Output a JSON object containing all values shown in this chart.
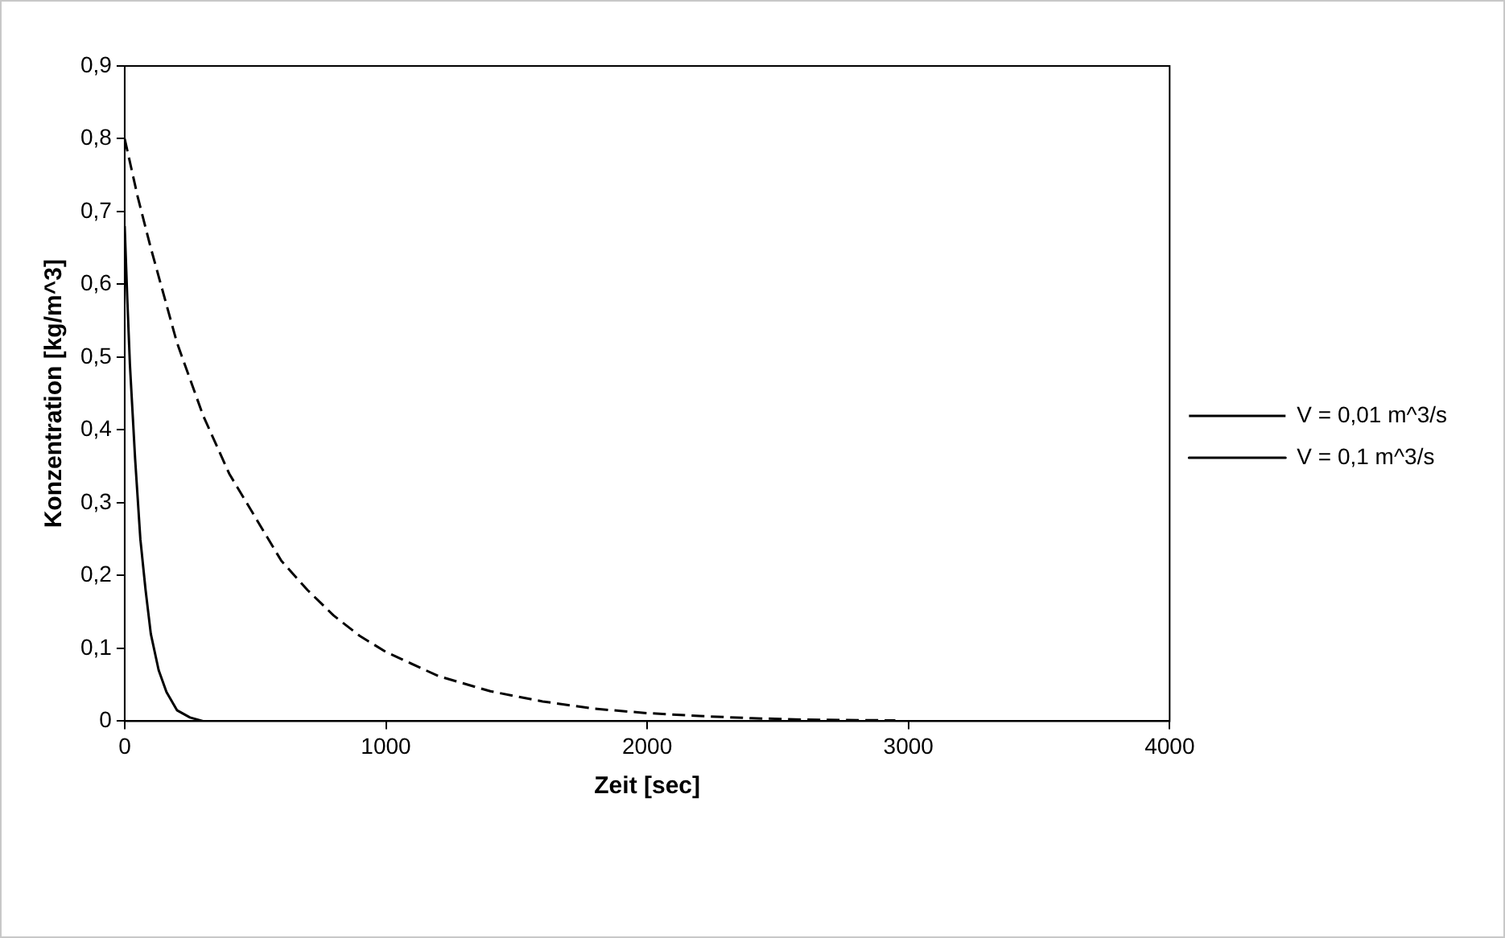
{
  "chart_data": {
    "type": "line",
    "xlabel": "Zeit [sec]",
    "ylabel": "Konzentration [kg/m^3]",
    "xlim": [
      0,
      4000
    ],
    "xticks": [
      0,
      1000,
      2000,
      3000,
      4000
    ],
    "ylim": [
      0,
      0.9
    ],
    "yticks": [
      {
        "value": 0,
        "label": "0"
      },
      {
        "value": 0.1,
        "label": "0,1"
      },
      {
        "value": 0.2,
        "label": "0,2"
      },
      {
        "value": 0.3,
        "label": "0,3"
      },
      {
        "value": 0.4,
        "label": "0,4"
      },
      {
        "value": 0.5,
        "label": "0,5"
      },
      {
        "value": 0.6,
        "label": "0,6"
      },
      {
        "value": 0.7,
        "label": "0,7"
      },
      {
        "value": 0.8,
        "label": "0,8"
      },
      {
        "value": 0.9,
        "label": "0,9"
      }
    ],
    "grid": false,
    "legend": "right",
    "marker": "none",
    "series": [
      {
        "name": "V = 0,01 m^3/s",
        "color": "#000000",
        "line_style": "dashed",
        "x": [
          0,
          50,
          100,
          200,
          300,
          400,
          500,
          600,
          700,
          800,
          900,
          1000,
          1200,
          1400,
          1600,
          1800,
          2000,
          2200,
          2400,
          2600,
          2950
        ],
        "values": [
          0.8,
          0.72,
          0.65,
          0.52,
          0.42,
          0.34,
          0.28,
          0.22,
          0.18,
          0.145,
          0.117,
          0.095,
          0.062,
          0.041,
          0.027,
          0.017,
          0.011,
          0.007,
          0.004,
          0.002,
          0.001
        ]
      },
      {
        "name": "V = 0,1 m^3/s",
        "color": "#000000",
        "line_style": "solid",
        "x": [
          0,
          10,
          20,
          40,
          60,
          80,
          100,
          130,
          160,
          200,
          250,
          300,
          1000
        ],
        "values": [
          0.68,
          0.58,
          0.49,
          0.36,
          0.25,
          0.18,
          0.12,
          0.07,
          0.04,
          0.015,
          0.005,
          0,
          0
        ]
      }
    ]
  }
}
